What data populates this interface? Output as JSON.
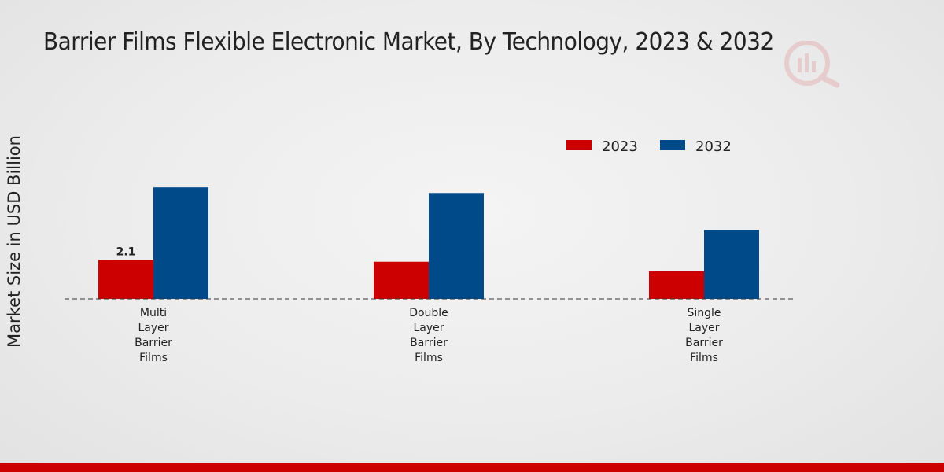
{
  "chart_data": {
    "type": "bar",
    "title": "Barrier Films Flexible Electronic Market, By Technology, 2023 & 2032",
    "xlabel": "",
    "ylabel": "Market Size in USD Billion",
    "categories": [
      "Multi\nLayer\nBarrier\nFilms",
      "Double\nLayer\nBarrier\nFilms",
      "Single\nLayer\nBarrier\nFilms"
    ],
    "series": [
      {
        "name": "2023",
        "values": [
          2.1,
          2.0,
          1.5
        ],
        "color": "#cc0000"
      },
      {
        "name": "2032",
        "values": [
          6.0,
          5.7,
          3.7
        ],
        "color": "#004a8a"
      }
    ],
    "data_labels": [
      {
        "series": 0,
        "index": 0,
        "text": "2.1"
      }
    ],
    "ylim": [
      0,
      11
    ],
    "grid": false,
    "legend_position": "top-right",
    "baseline": "dashed"
  },
  "colors": {
    "accent_bar": "#cc0000",
    "text": "#222222"
  },
  "icons": {
    "watermark": "logo-watermark-icon"
  }
}
